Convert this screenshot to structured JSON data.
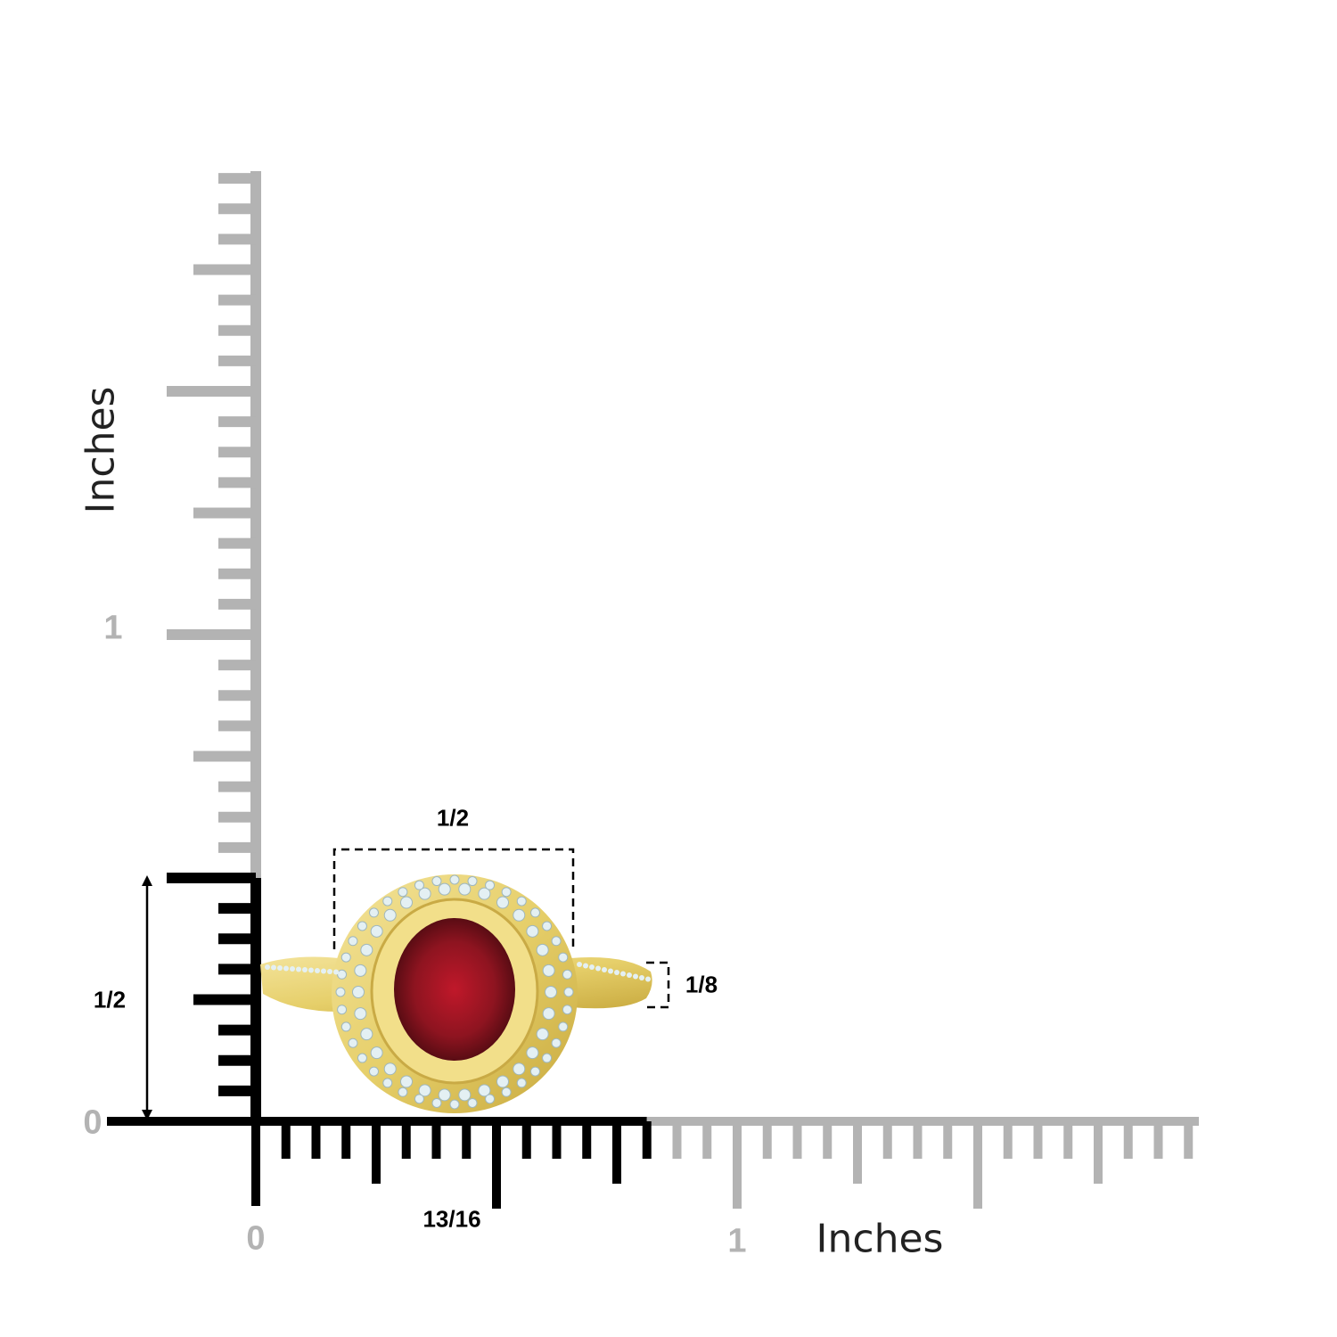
{
  "colors": {
    "ruler_inactive": "#b3b3b3",
    "ruler_active": "#000000",
    "gold": "#e6cf6a",
    "ruby": "#8e1420",
    "diamond": "#e4f0f3"
  },
  "vertical_ruler": {
    "title": "Inches",
    "zero_label": "0",
    "one_label": "1",
    "measured_label": "1/2",
    "measured_inches": 0.5
  },
  "horizontal_ruler": {
    "title": "Inches",
    "zero_label": "0",
    "one_label": "1",
    "measured_label": "13/16",
    "measured_inches": 0.8125
  },
  "dimensions": {
    "top_width_label": "1/2",
    "band_width_label": "1/8"
  },
  "subject": {
    "icon": "ruby-halo-ring-image"
  }
}
